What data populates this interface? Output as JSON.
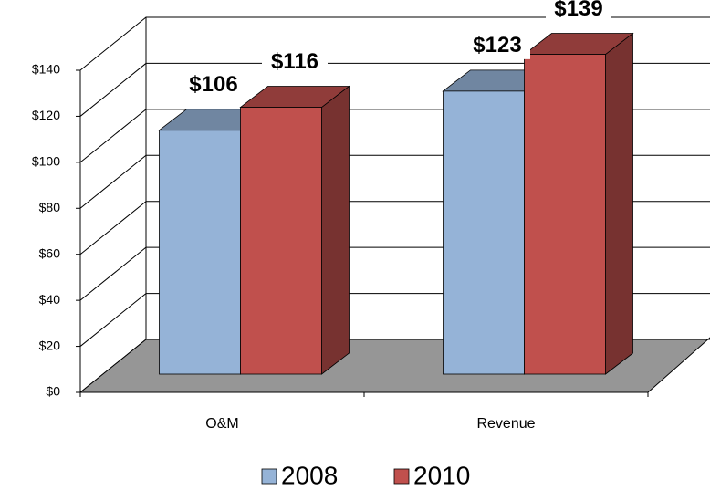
{
  "chart_data": {
    "type": "bar3d",
    "categories": [
      "O&M",
      "Revenue"
    ],
    "series": [
      {
        "name": "2008",
        "color": "#95b3d7",
        "values": [
          106,
          123
        ],
        "value_labels": [
          "$106",
          "$123"
        ]
      },
      {
        "name": "2010",
        "color": "#c0504d",
        "values": [
          116,
          139
        ],
        "value_labels": [
          "$116",
          "$139"
        ]
      }
    ],
    "ylim": [
      0,
      140
    ],
    "yticks": [
      {
        "value": 0,
        "label": "$0"
      },
      {
        "value": 20,
        "label": "$20"
      },
      {
        "value": 40,
        "label": "$40"
      },
      {
        "value": 60,
        "label": "$60"
      },
      {
        "value": 80,
        "label": "$80"
      },
      {
        "value": 100,
        "label": "$100"
      },
      {
        "value": 120,
        "label": "$120"
      },
      {
        "value": 140,
        "label": "$140"
      }
    ],
    "grid": true,
    "legend": "bottom"
  }
}
